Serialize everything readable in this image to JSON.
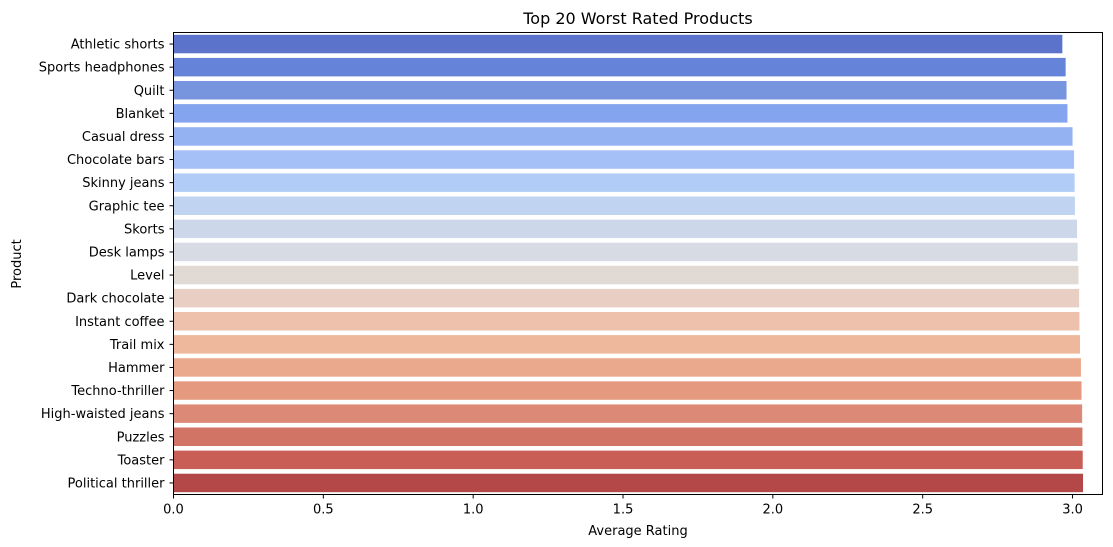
{
  "chart_data": {
    "type": "bar",
    "orientation": "horizontal",
    "title": "Top 20 Worst Rated Products",
    "xlabel": "Average Rating",
    "ylabel": "Product",
    "xlim": [
      0,
      3.1
    ],
    "xticks": [
      "0.0",
      "0.5",
      "1.0",
      "1.5",
      "2.0",
      "2.5",
      "3.0"
    ],
    "categories": [
      "Athletic shorts",
      "Sports headphones",
      "Quilt",
      "Blanket",
      "Casual dress",
      "Chocolate bars",
      "Skinny jeans",
      "Graphic tee",
      "Skorts",
      "Desk lamps",
      "Level",
      "Dark chocolate",
      "Instant coffee",
      "Trail mix",
      "Hammer",
      "Techno-thriller",
      "High-waisted jeans",
      "Puzzles",
      "Toaster",
      "Political thriller"
    ],
    "values": [
      2.966,
      2.977,
      2.98,
      2.983,
      3.0,
      3.005,
      3.007,
      3.008,
      3.015,
      3.017,
      3.02,
      3.022,
      3.023,
      3.025,
      3.028,
      3.03,
      3.032,
      3.033,
      3.034,
      3.035
    ],
    "colors": [
      "#5b73cb",
      "#6583d8",
      "#7794df",
      "#85a4ef",
      "#94b2f2",
      "#a4c0f6",
      "#b2ccf8",
      "#c0d4f2",
      "#ccd8ea",
      "#d7dbe3",
      "#e1d9d3",
      "#e9cfc3",
      "#eec1ac",
      "#edb89c",
      "#eaa98c",
      "#e59a7f",
      "#dc8a77",
      "#d17466",
      "#c85e55",
      "#b44848"
    ],
    "grid": false,
    "legend": "none"
  }
}
